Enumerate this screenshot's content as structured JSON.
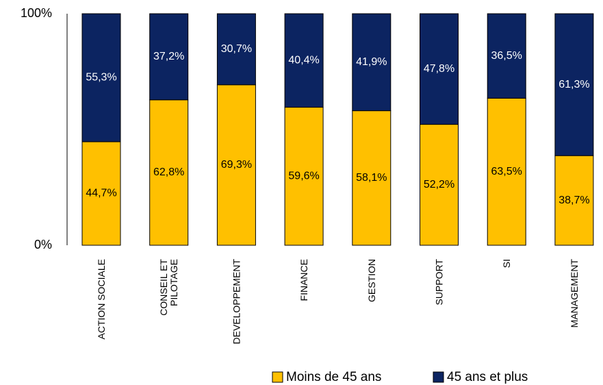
{
  "chart_data": {
    "type": "bar",
    "stacked": "percent",
    "categories": [
      [
        "ACTION SOCIALE"
      ],
      [
        "CONSEIL ET",
        "PILOTAGE"
      ],
      [
        "DEVELOPPEMENT"
      ],
      [
        "FINANCE"
      ],
      [
        "GESTION"
      ],
      [
        "SUPPORT"
      ],
      [
        "SI"
      ],
      [
        "MANAGEMENT"
      ]
    ],
    "series": [
      {
        "name": "Moins de 45 ans",
        "color": "#FFC000",
        "values": [
          44.7,
          62.8,
          69.3,
          59.6,
          58.1,
          52.2,
          63.5,
          38.7
        ],
        "labels": [
          "44,7%",
          "62,8%",
          "69,3%",
          "59,6%",
          "58,1%",
          "52,2%",
          "63,5%",
          "38,7%"
        ]
      },
      {
        "name": "45 ans et plus",
        "color": "#0C2461",
        "values": [
          55.3,
          37.2,
          30.7,
          40.4,
          41.9,
          47.8,
          36.5,
          61.3
        ],
        "labels": [
          "55,3%",
          "37,2%",
          "30,7%",
          "40,4%",
          "41,9%",
          "47,8%",
          "36,5%",
          "61,3%"
        ]
      }
    ],
    "y_ticks": [
      "0%",
      "100%"
    ],
    "ylim": [
      0,
      100
    ],
    "legend_position": "bottom",
    "grid": false
  }
}
